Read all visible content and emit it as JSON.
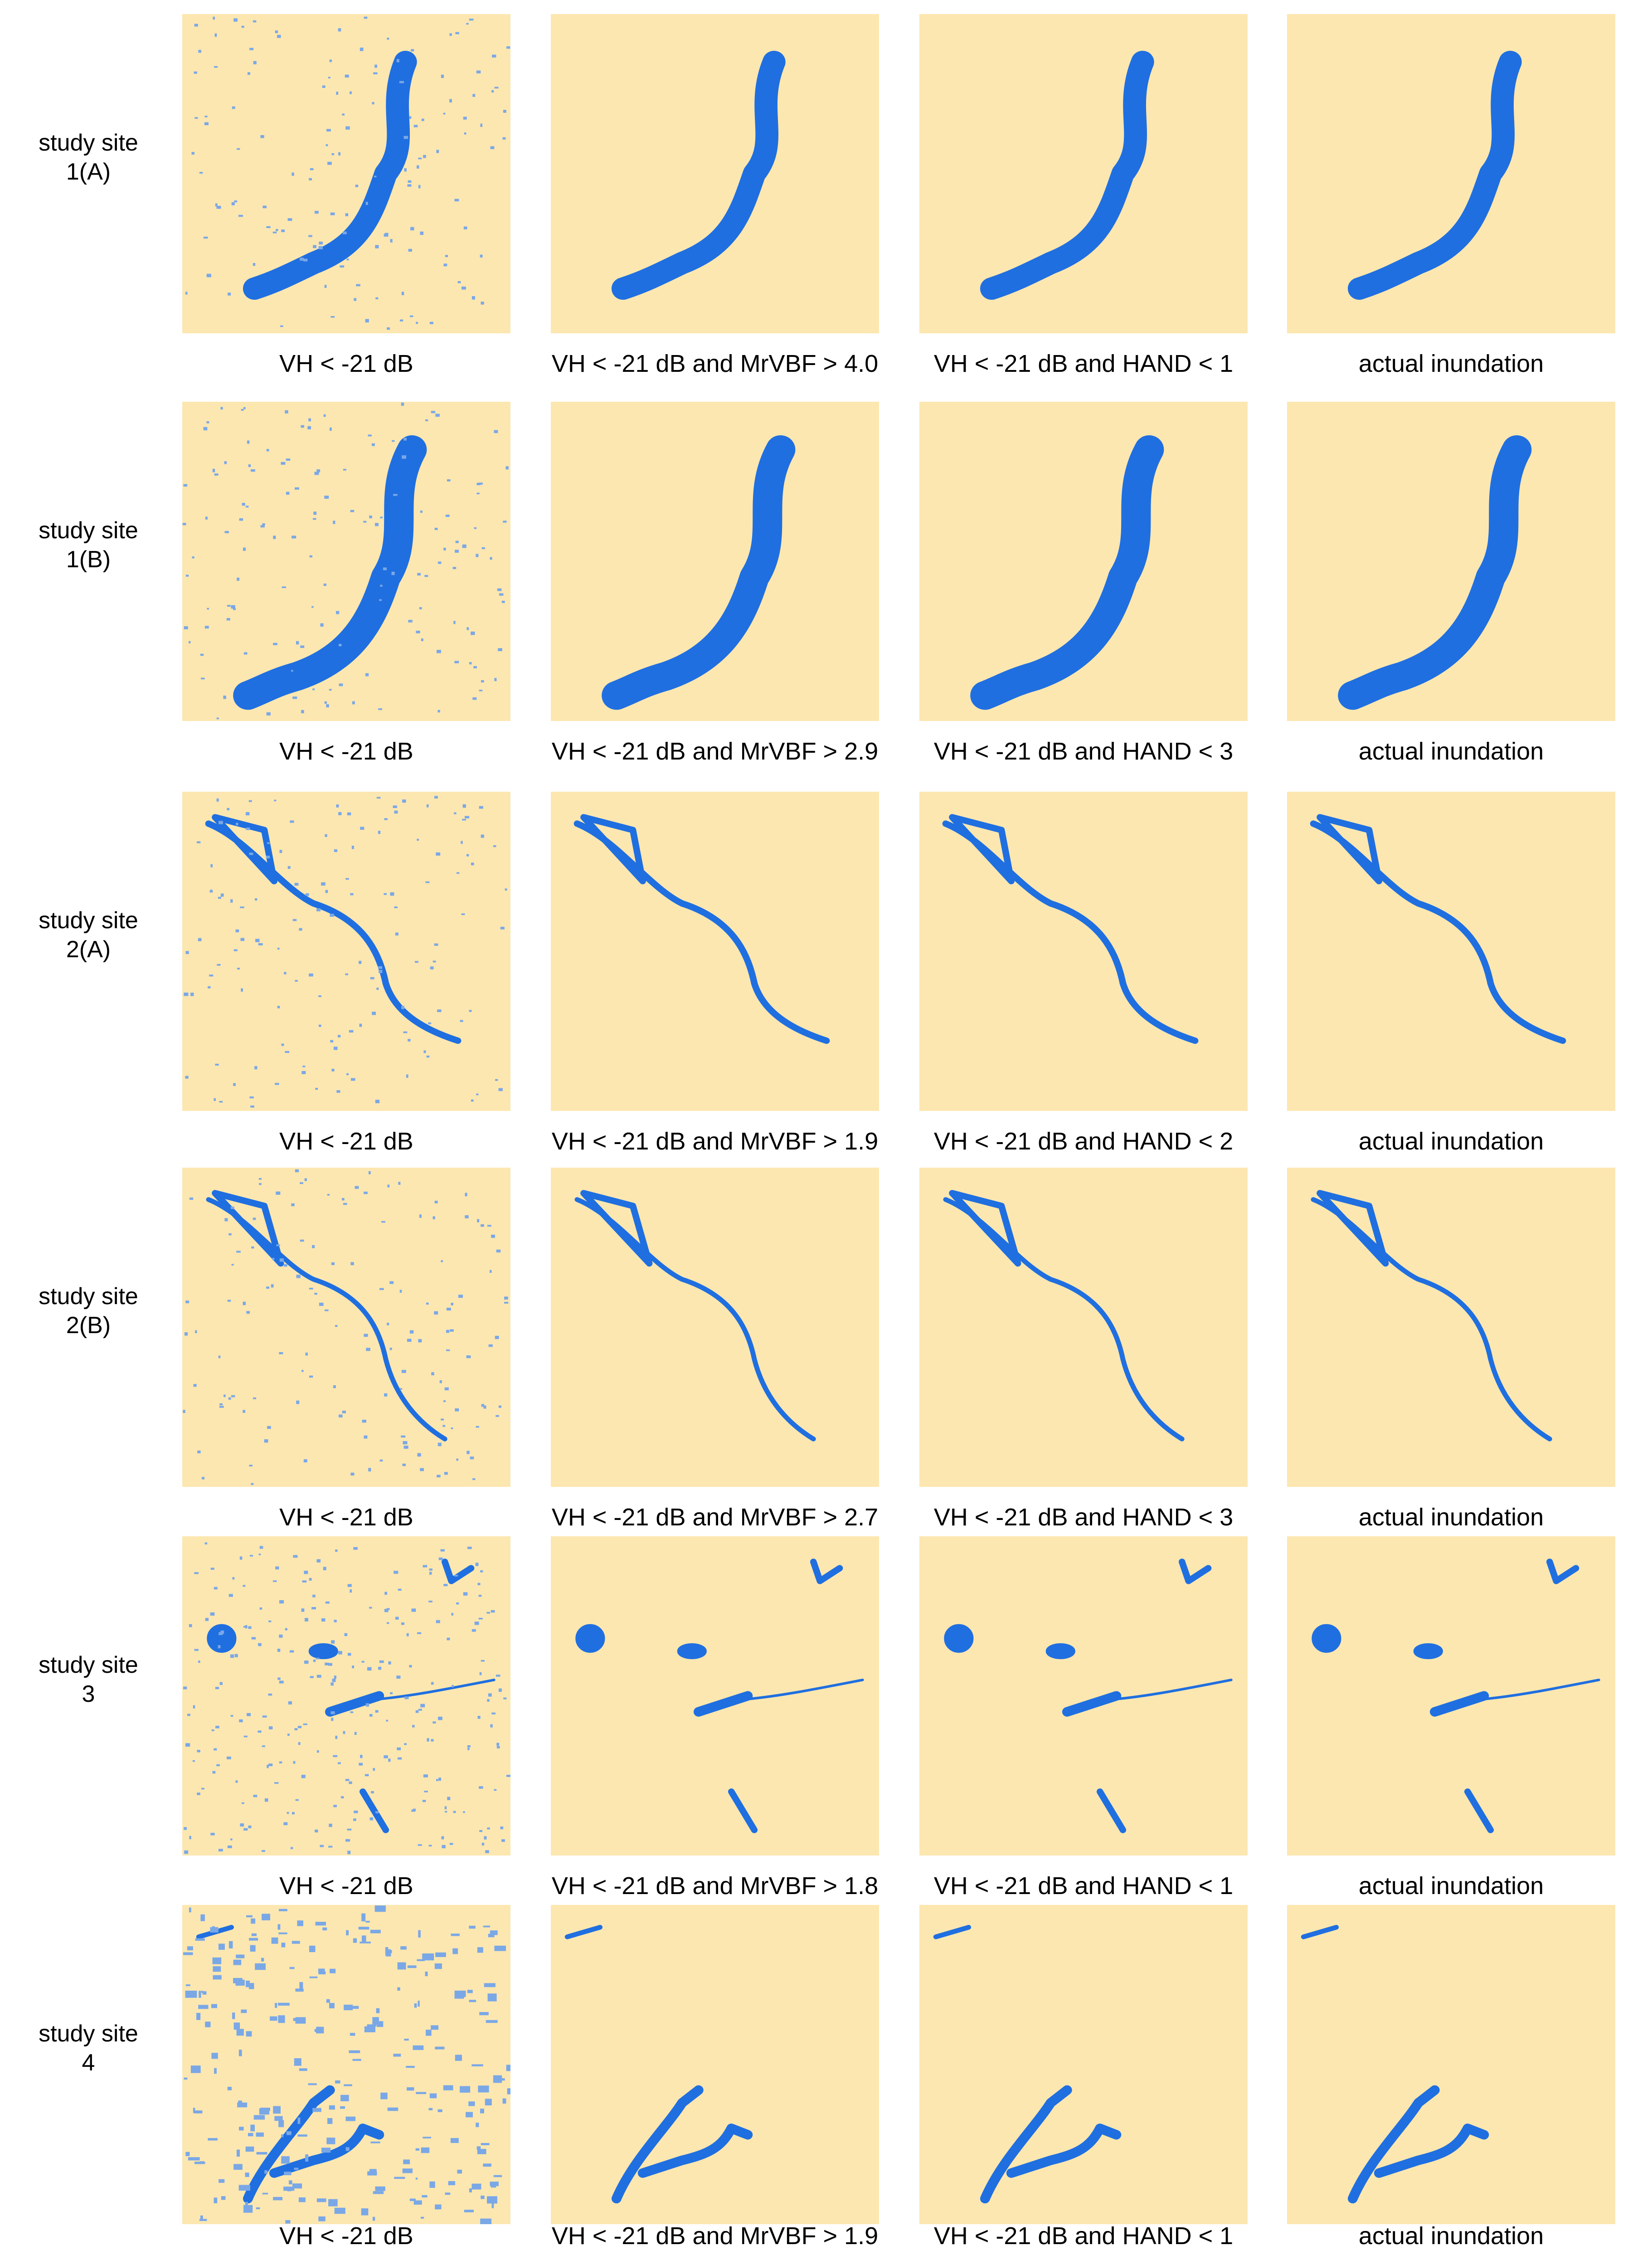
{
  "rows": [
    {
      "label": [
        "study site",
        "1(A)"
      ],
      "panels": [
        "VH < -21 dB",
        "VH < -21 dB and MrVBF > 4.0",
        "VH < -21 dB and HAND < 1",
        "actual inundation"
      ]
    },
    {
      "label": [
        "study site",
        "1(B)"
      ],
      "panels": [
        "VH < -21 dB",
        "VH < -21 dB and MrVBF > 2.9",
        "VH < -21 dB and HAND < 3",
        "actual inundation"
      ]
    },
    {
      "label": [
        "study site",
        "2(A)"
      ],
      "panels": [
        "VH < -21 dB",
        "VH < -21 dB and MrVBF > 1.9",
        "VH < -21 dB and HAND < 2",
        "actual inundation"
      ]
    },
    {
      "label": [
        "study site",
        "2(B)"
      ],
      "panels": [
        "VH < -21 dB",
        "VH < -21 dB and MrVBF > 2.7",
        "VH < -21 dB and HAND < 3",
        "actual inundation"
      ]
    },
    {
      "label": [
        "study site",
        "3"
      ],
      "panels": [
        "VH < -21 dB",
        "VH < -21 dB and MrVBF > 1.8",
        "VH < -21 dB and HAND < 1",
        "actual inundation"
      ]
    },
    {
      "label": [
        "study site",
        "4"
      ],
      "panels": [
        "VH < -21 dB",
        "VH < -21 dB and MrVBF > 1.9",
        "VH < -21 dB and HAND < 1",
        "actual inundation"
      ]
    }
  ]
}
